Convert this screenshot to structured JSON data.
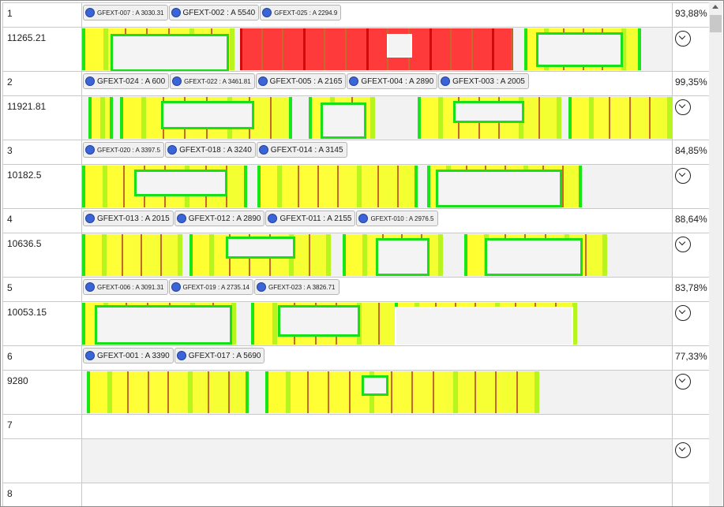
{
  "rows": [
    {
      "index": "1",
      "length": "11265.21",
      "percent": "93,88%",
      "tags": [
        {
          "label": "GFEXT-007 : A 3030.31",
          "size": "small"
        },
        {
          "label": "GFEXT-002 : A 5540",
          "size": "big"
        },
        {
          "label": "GFEXT-025 : A 2294.9",
          "size": "small"
        }
      ]
    },
    {
      "index": "2",
      "length": "11921.81",
      "percent": "99,35%",
      "tags": [
        {
          "label": "GFEXT-024 : A 600",
          "size": "big"
        },
        {
          "label": "GFEXT-022 : A 3461.81",
          "size": "small"
        },
        {
          "label": "GFEXT-005 : A 2165",
          "size": "big"
        },
        {
          "label": "GFEXT-004 : A 2890",
          "size": "big"
        },
        {
          "label": "GFEXT-003 : A 2005",
          "size": "big"
        }
      ]
    },
    {
      "index": "3",
      "length": "10182.5",
      "percent": "84,85%",
      "tags": [
        {
          "label": "GFEXT-020 : A 3397.5",
          "size": "small"
        },
        {
          "label": "GFEXT-018 : A 3240",
          "size": "big"
        },
        {
          "label": "GFEXT-014 : A 3145",
          "size": "big"
        }
      ]
    },
    {
      "index": "4",
      "length": "10636.5",
      "percent": "88,64%",
      "tags": [
        {
          "label": "GFEXT-013 : A 2015",
          "size": "big"
        },
        {
          "label": "GFEXT-012 : A 2890",
          "size": "big"
        },
        {
          "label": "GFEXT-011 : A 2155",
          "size": "big"
        },
        {
          "label": "GFEXT-010 : A 2976.5",
          "size": "small"
        }
      ]
    },
    {
      "index": "5",
      "length": "10053.15",
      "percent": "83,78%",
      "tags": [
        {
          "label": "GFEXT-006 : A 3091.31",
          "size": "small"
        },
        {
          "label": "GFEXT-019 : A 2735.14",
          "size": "small"
        },
        {
          "label": "GFEXT-023 : A 3826.71",
          "size": "small"
        }
      ]
    },
    {
      "index": "6",
      "length": "9280",
      "percent": "77,33%",
      "tags": [
        {
          "label": "GFEXT-001 : A 3390",
          "size": "big"
        },
        {
          "label": "GFEXT-017 : A 5690",
          "size": "big"
        }
      ]
    },
    {
      "index": "7",
      "length": "",
      "percent": "",
      "tags": []
    },
    {
      "index": "8",
      "length": "",
      "percent": "",
      "tags": []
    }
  ],
  "icons": {
    "expand": "chevron-down-circle-icon",
    "scroll_up": "arrow-up-icon"
  },
  "colors": {
    "tag_dot": "#3a64d8",
    "over_limit": "#ff3a3a",
    "panel": "#ffff2e",
    "frame_green": "#18e018"
  }
}
